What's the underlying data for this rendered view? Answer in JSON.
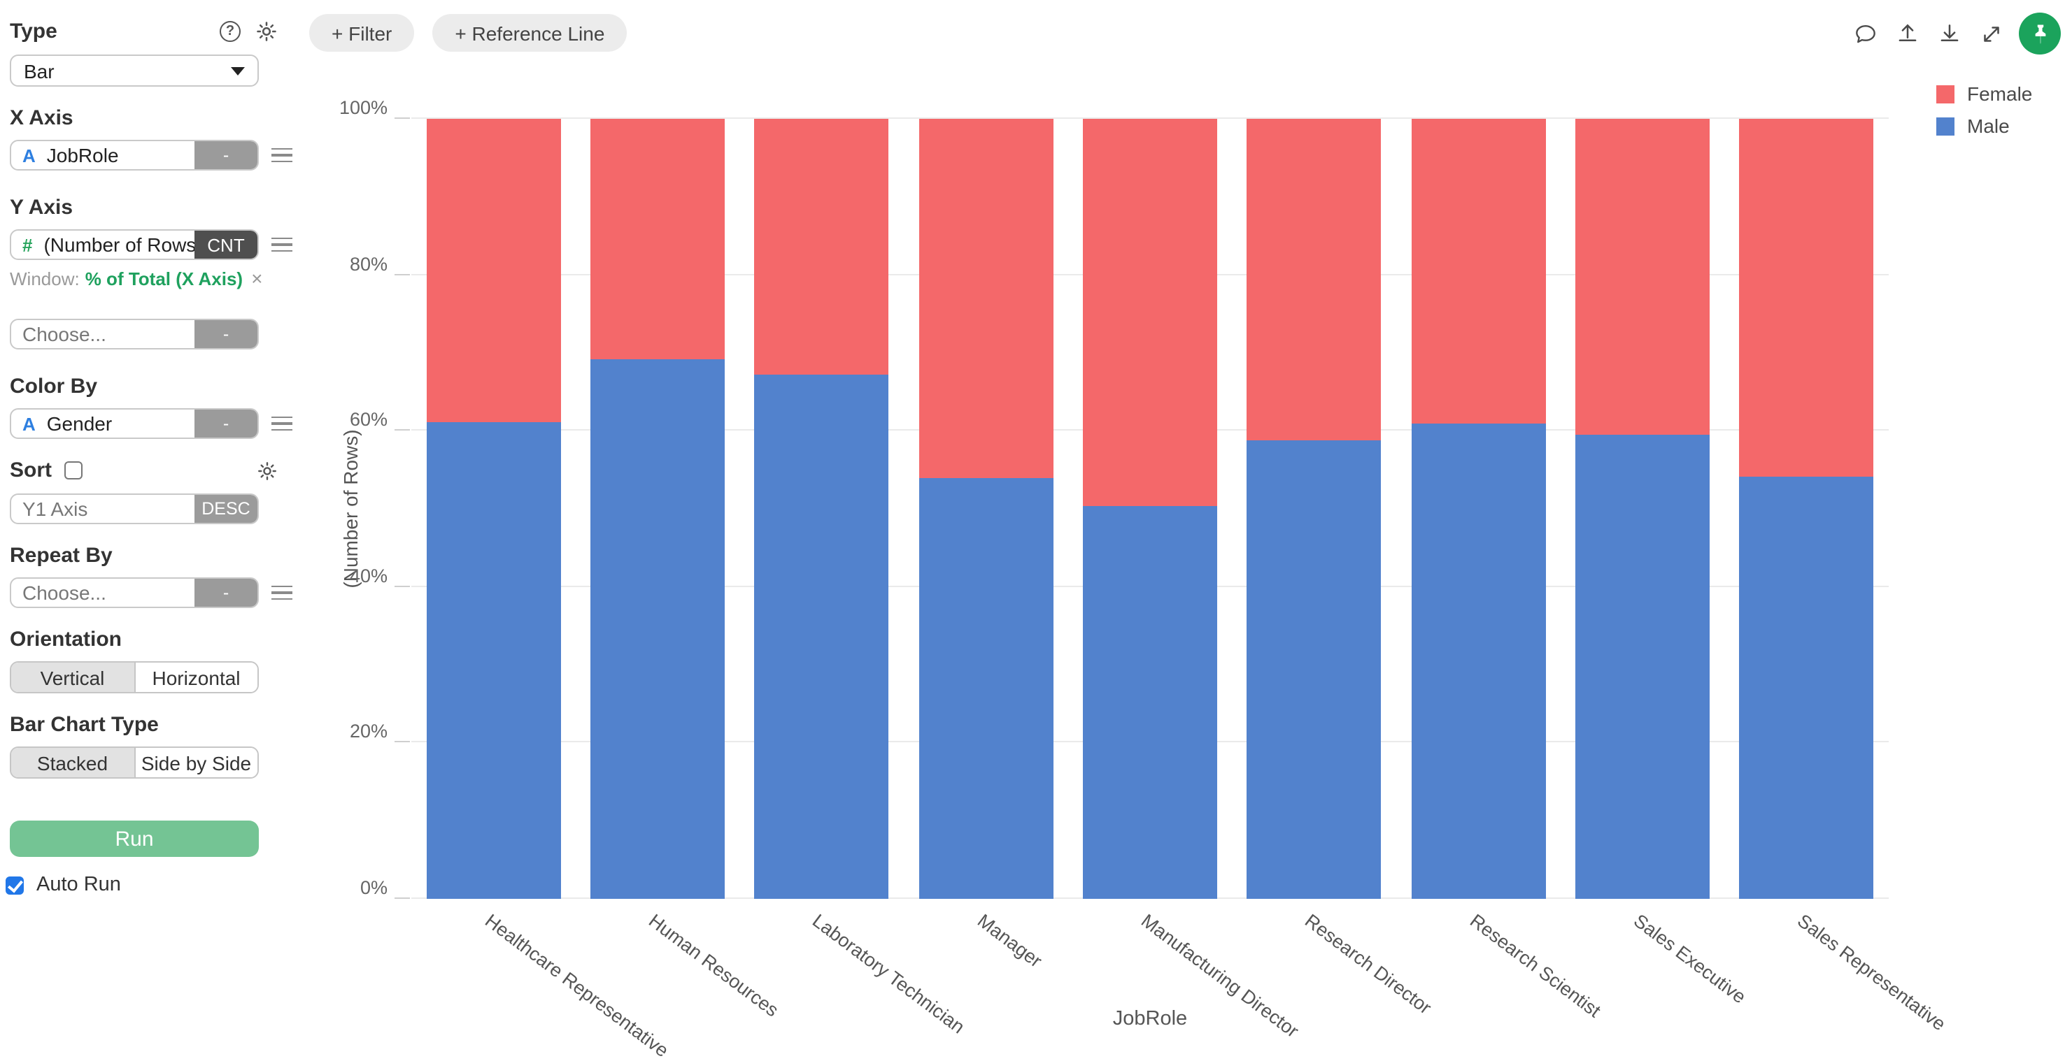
{
  "sidebar": {
    "type_label": "Type",
    "type_value": "Bar",
    "x_axis": {
      "label": "X Axis",
      "field_type": "A",
      "field": "JobRole",
      "agg": "-"
    },
    "y_axis": {
      "label": "Y Axis",
      "field_type": "#",
      "field": "(Number of Rows)",
      "agg": "CNT",
      "window_prefix": "Window:",
      "window_value": "% of Total (X Axis)",
      "window_close": "×",
      "choose_placeholder": "Choose...",
      "choose_agg": "-"
    },
    "color_by": {
      "label": "Color By",
      "field_type": "A",
      "field": "Gender",
      "agg": "-"
    },
    "sort": {
      "label": "Sort",
      "checked": false,
      "placeholder": "Y1 Axis",
      "order": "DESC"
    },
    "repeat_by": {
      "label": "Repeat By",
      "placeholder": "Choose...",
      "agg": "-"
    },
    "orientation": {
      "label": "Orientation",
      "options": [
        "Vertical",
        "Horizontal"
      ],
      "selected": "Vertical"
    },
    "bar_chart_type": {
      "label": "Bar Chart Type",
      "options": [
        "Stacked",
        "Side by Side"
      ],
      "selected": "Stacked"
    },
    "run_label": "Run",
    "auto_run": {
      "label": "Auto Run",
      "checked": true
    }
  },
  "toolbar": {
    "filter_label": "+ Filter",
    "reference_line_label": "+ Reference Line"
  },
  "colors": {
    "female": "#f4686a",
    "male": "#5282cd",
    "run_button": "#74c494",
    "avatar": "#1ba35c",
    "window_green": "#1fa15e",
    "autorun_blue": "#2177e8"
  },
  "chart_data": {
    "type": "bar",
    "stacked": true,
    "percent": true,
    "xlabel": "JobRole",
    "ylabel": "(Number of Rows)",
    "categories": [
      "Healthcare Representative",
      "Human Resources",
      "Laboratory Technician",
      "Manager",
      "Manufacturing Director",
      "Research Director",
      "Research Scientist",
      "Sales Executive",
      "Sales Representative"
    ],
    "series": [
      {
        "name": "Female",
        "color": "#f4686a",
        "values": [
          38.9,
          30.8,
          32.8,
          46.1,
          49.7,
          41.2,
          39.0,
          40.5,
          45.8
        ]
      },
      {
        "name": "Male",
        "color": "#5282cd",
        "values": [
          61.1,
          69.2,
          67.2,
          53.9,
          50.3,
          58.8,
          61.0,
          59.5,
          54.2
        ]
      }
    ],
    "ylim": [
      0,
      100
    ],
    "y_ticks": [
      "0%",
      "20%",
      "40%",
      "60%",
      "80%",
      "100%"
    ],
    "grid": true,
    "legend_position": "top-right"
  }
}
